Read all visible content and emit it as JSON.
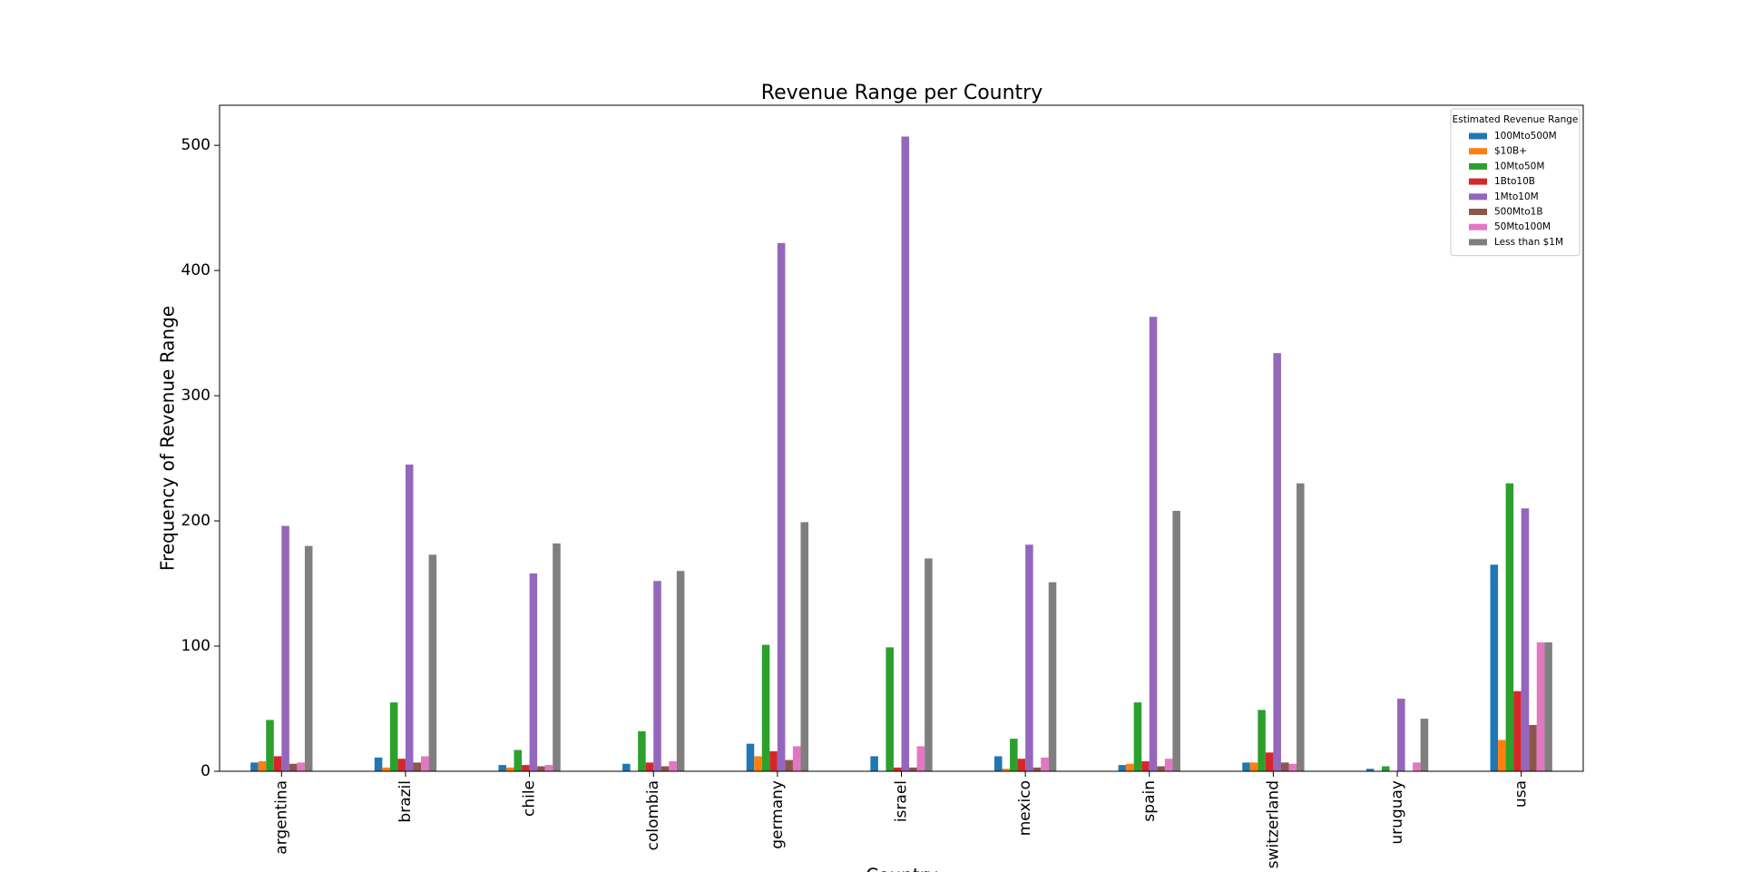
{
  "chart_data": {
    "type": "bar",
    "title": "Revenue Range per Country",
    "x_label": "Country",
    "y_label": "Frequency of Revenue Range",
    "legend_title": "Estimated Revenue Range",
    "legend_position": "upper right",
    "categories": [
      "argentina",
      "brazil",
      "chile",
      "colombia",
      "germany",
      "israel",
      "mexico",
      "spain",
      "switzerland",
      "uruguay",
      "usa"
    ],
    "series": [
      {
        "name": "100Mto500M",
        "color": "#1f77b4",
        "values": [
          7,
          11,
          5,
          6,
          22,
          12,
          12,
          5,
          7,
          2,
          165
        ]
      },
      {
        "name": "$10B+",
        "color": "#ff7f0e",
        "values": [
          8,
          3,
          3,
          null,
          12,
          null,
          2,
          6,
          7,
          null,
          25
        ]
      },
      {
        "name": "10Mto50M",
        "color": "#2ca02c",
        "values": [
          41,
          55,
          17,
          32,
          101,
          99,
          26,
          55,
          49,
          4,
          230
        ]
      },
      {
        "name": "1Bto10B",
        "color": "#d62728",
        "values": [
          12,
          10,
          5,
          7,
          16,
          3,
          10,
          8,
          15,
          null,
          64
        ]
      },
      {
        "name": "1Mto10M",
        "color": "#9467bd",
        "values": [
          196,
          245,
          158,
          152,
          422,
          507,
          181,
          363,
          334,
          58,
          210
        ]
      },
      {
        "name": "500Mto1B",
        "color": "#8c564b",
        "values": [
          6,
          7,
          4,
          4,
          9,
          3,
          3,
          4,
          7,
          null,
          37
        ]
      },
      {
        "name": "50Mto100M",
        "color": "#e377c2",
        "values": [
          7,
          12,
          5,
          8,
          20,
          20,
          11,
          10,
          6,
          7,
          103
        ]
      },
      {
        "name": "Less than $1M",
        "color": "#7f7f7f",
        "values": [
          180,
          173,
          182,
          160,
          199,
          170,
          151,
          208,
          230,
          42,
          103
        ]
      }
    ],
    "ylim": [
      0,
      532
    ],
    "yticks": [
      0,
      100,
      200,
      300,
      400,
      500
    ]
  }
}
